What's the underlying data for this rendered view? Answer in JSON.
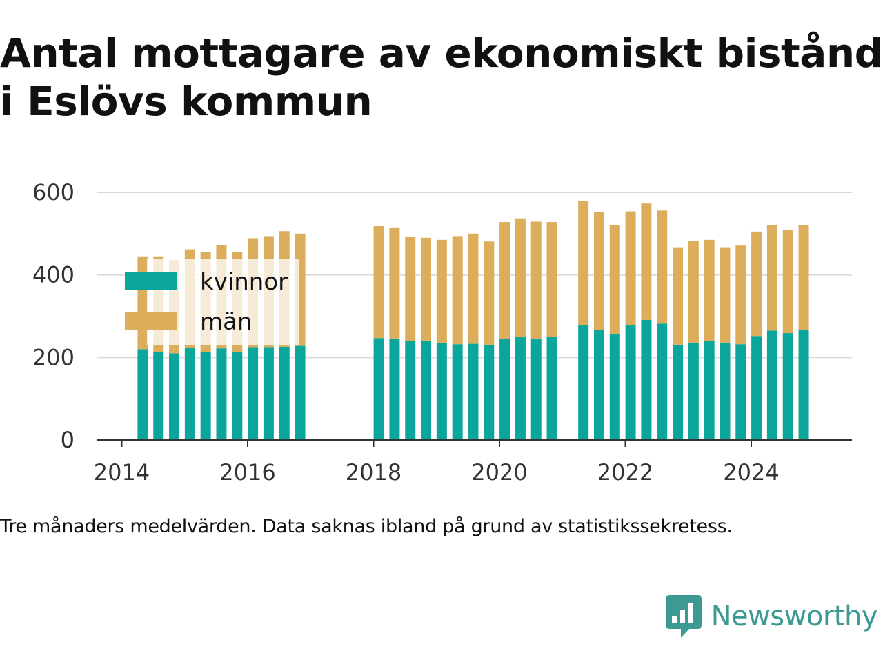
{
  "title": "Antal mottagare av ekonomiskt bistånd i Eslövs kommun",
  "footnote": "Tre månaders medelvärden. Data saknas ibland på grund av statistikssekretess.",
  "brand": "Newsworthy",
  "colors": {
    "kvinnor": "#0aa59b",
    "man": "#dcae5c",
    "grid": "#d9d9d9",
    "axis": "#333333",
    "brand": "#3d9a93"
  },
  "chart_data": {
    "type": "bar",
    "stacked": true,
    "grid": true,
    "legend_position": "top-left",
    "xlim": [
      2013.6,
      2025.6
    ],
    "ylim": [
      0,
      600
    ],
    "x_ticks": [
      {
        "value": 2014,
        "label": "2014"
      },
      {
        "value": 2016,
        "label": "2016"
      },
      {
        "value": 2018,
        "label": "2018"
      },
      {
        "value": 2020,
        "label": "2020"
      },
      {
        "value": 2022,
        "label": "2022"
      },
      {
        "value": 2024,
        "label": "2024"
      }
    ],
    "y_ticks": [
      {
        "value": 0,
        "label": "0"
      },
      {
        "value": 200,
        "label": "200"
      },
      {
        "value": 400,
        "label": "400"
      },
      {
        "value": 600,
        "label": "600"
      }
    ],
    "x": [
      "2014-05",
      "2014-08",
      "2014-11",
      "2015-02",
      "2015-05",
      "2015-08",
      "2015-11",
      "2016-02",
      "2016-05",
      "2016-08",
      "2016-11",
      "2018-02",
      "2018-05",
      "2018-08",
      "2018-11",
      "2019-02",
      "2019-05",
      "2019-08",
      "2019-11",
      "2020-02",
      "2020-05",
      "2020-08",
      "2020-11",
      "2021-05",
      "2021-08",
      "2021-11",
      "2022-02",
      "2022-05",
      "2022-08",
      "2022-11",
      "2023-02",
      "2023-05",
      "2023-08",
      "2023-11",
      "2024-02",
      "2024-05",
      "2024-08",
      "2024-11"
    ],
    "series": [
      {
        "name": "kvinnor",
        "values": [
          220,
          213,
          210,
          223,
          213,
          222,
          213,
          225,
          225,
          226,
          228,
          247,
          246,
          240,
          241,
          235,
          232,
          233,
          231,
          245,
          250,
          246,
          250,
          278,
          267,
          256,
          278,
          291,
          282,
          231,
          236,
          239,
          236,
          232,
          252,
          265,
          259,
          267
        ]
      },
      {
        "name": "män",
        "values": [
          225,
          232,
          226,
          239,
          243,
          251,
          242,
          264,
          269,
          280,
          272,
          271,
          269,
          253,
          249,
          250,
          262,
          267,
          250,
          283,
          287,
          283,
          278,
          302,
          286,
          264,
          276,
          282,
          274,
          236,
          247,
          246,
          231,
          239,
          253,
          256,
          250,
          253
        ]
      }
    ]
  }
}
